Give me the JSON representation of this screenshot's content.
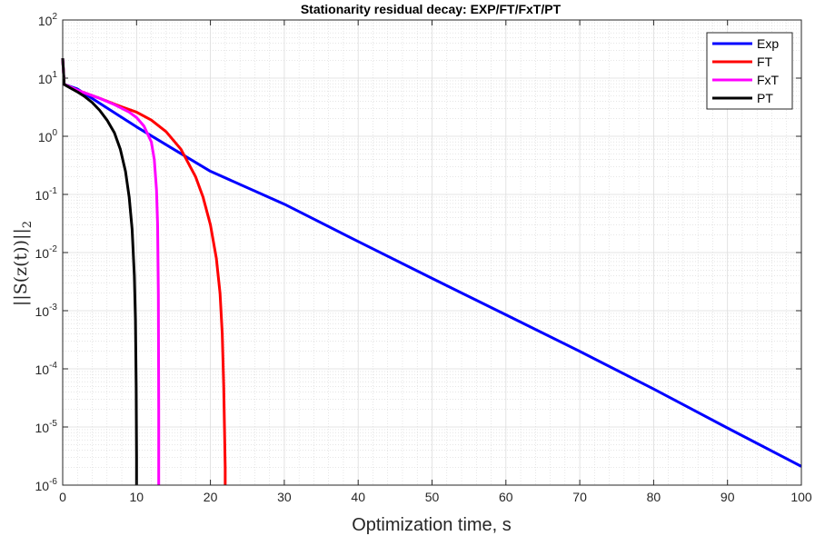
{
  "chart_data": {
    "type": "line",
    "title": "Stationarity residual decay: EXP/FT/FxT/PT",
    "xlabel": "Optimization time, s",
    "ylabel": "||S(z(t))||",
    "ylabel_subscript": "2",
    "xlim": [
      0,
      100
    ],
    "ylim": [
      1e-06,
      100
    ],
    "yscale": "log",
    "grid": true,
    "minor_grid": true,
    "legend_position": "top-right",
    "x_ticks": [
      "0",
      "10",
      "20",
      "30",
      "40",
      "50",
      "60",
      "70",
      "80",
      "90",
      "100"
    ],
    "y_ticks": [
      {
        "base": "10",
        "exp": "-6"
      },
      {
        "base": "10",
        "exp": "-5"
      },
      {
        "base": "10",
        "exp": "-4"
      },
      {
        "base": "10",
        "exp": "-3"
      },
      {
        "base": "10",
        "exp": "-2"
      },
      {
        "base": "10",
        "exp": "-1"
      },
      {
        "base": "10",
        "exp": "0"
      },
      {
        "base": "10",
        "exp": "1"
      },
      {
        "base": "10",
        "exp": "2"
      }
    ],
    "series": [
      {
        "name": "Exp",
        "color": "#0000ff",
        "x": [
          0,
          0.2,
          2,
          5,
          10,
          15,
          20,
          30,
          40,
          50,
          60,
          70,
          80,
          90,
          100
        ],
        "y": [
          22,
          7.8,
          6.5,
          3.7,
          1.45,
          0.6,
          0.25,
          0.068,
          0.0155,
          0.0036,
          0.00085,
          0.0002,
          4.5e-05,
          9.6e-06,
          2.1e-06
        ]
      },
      {
        "name": "FT",
        "color": "#ff0000",
        "x": [
          0,
          0.2,
          2,
          5,
          8,
          10,
          12,
          14,
          16,
          18,
          19,
          20,
          20.8,
          21.3,
          21.6,
          21.8,
          21.9,
          22,
          22
        ],
        "y": [
          22,
          7.8,
          6.2,
          4.5,
          3.2,
          2.6,
          1.9,
          1.2,
          0.6,
          0.2,
          0.09,
          0.03,
          0.008,
          0.002,
          0.0004,
          5e-05,
          1e-05,
          2e-06,
          1e-06
        ]
      },
      {
        "name": "FxT",
        "color": "#ff00ff",
        "x": [
          0,
          0.2,
          2,
          5,
          7,
          9,
          10,
          11,
          12,
          12.4,
          12.7,
          12.85,
          12.95,
          13,
          13
        ],
        "y": [
          22,
          7.8,
          6.2,
          4.5,
          3.5,
          2.6,
          2.1,
          1.5,
          0.8,
          0.4,
          0.12,
          0.03,
          0.002,
          2e-05,
          1e-06
        ]
      },
      {
        "name": "PT",
        "color": "#000000",
        "x": [
          0,
          0.2,
          1,
          2,
          3,
          4,
          5,
          6,
          7,
          7.8,
          8.5,
          9,
          9.4,
          9.7,
          9.85,
          9.95,
          10,
          10
        ],
        "y": [
          22,
          7.8,
          6.8,
          5.8,
          4.8,
          3.8,
          2.8,
          1.9,
          1.15,
          0.6,
          0.25,
          0.09,
          0.025,
          0.004,
          0.0007,
          5e-05,
          3e-06,
          1e-06
        ]
      }
    ]
  }
}
